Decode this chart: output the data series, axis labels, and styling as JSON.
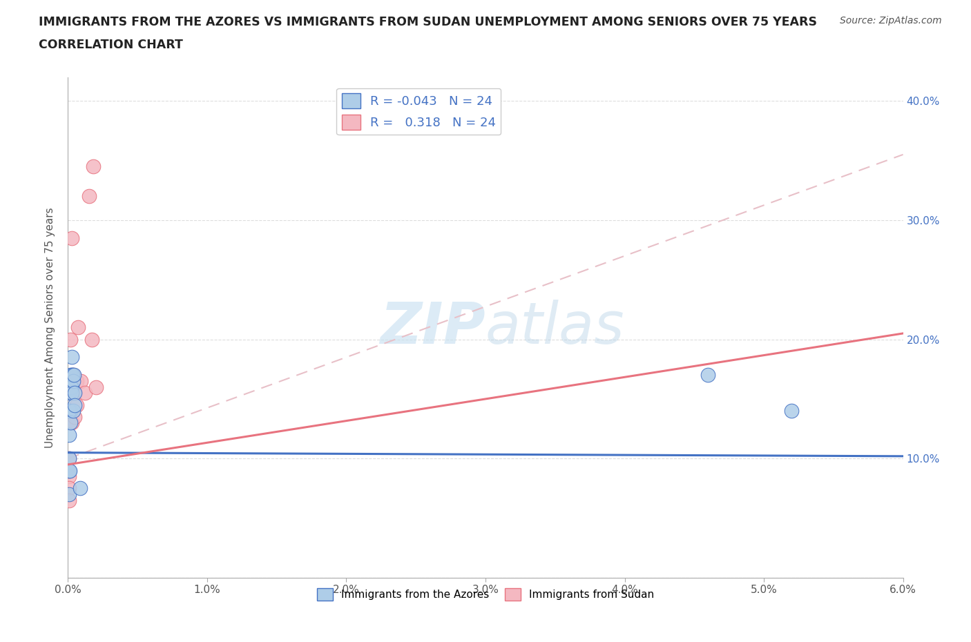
{
  "title_line1": "IMMIGRANTS FROM THE AZORES VS IMMIGRANTS FROM SUDAN UNEMPLOYMENT AMONG SENIORS OVER 75 YEARS",
  "title_line2": "CORRELATION CHART",
  "source": "Source: ZipAtlas.com",
  "watermark": "ZIPatlas",
  "ylabel_left": "Unemployment Among Seniors over 75 years",
  "xlim": [
    0.0,
    0.06
  ],
  "ylim": [
    0.0,
    0.42
  ],
  "xticks": [
    0.0,
    0.01,
    0.02,
    0.03,
    0.04,
    0.05,
    0.06
  ],
  "yticks_left": [
    0.0,
    0.1,
    0.2,
    0.3,
    0.4
  ],
  "ytick_labels_right": [
    "10.0%",
    "20.0%",
    "30.0%",
    "40.0%"
  ],
  "xtick_labels": [
    "0.0%",
    "1.0%",
    "2.0%",
    "3.0%",
    "4.0%",
    "5.0%",
    "6.0%"
  ],
  "color_azores": "#aecde8",
  "color_sudan": "#f4b8c1",
  "line_color_azores": "#4472c4",
  "line_color_sudan": "#e8737f",
  "trendline_azores_color": "#4472c4",
  "trendline_sudan_color": "#e8737f",
  "trendline_reference_color": "#e8c0c8",
  "background_color": "#ffffff",
  "azores_x": [
    0.0002,
    0.0003,
    0.0003,
    0.0001,
    0.0001,
    0.0001,
    0.0001,
    0.0001,
    0.0001,
    0.00015,
    0.0002,
    0.0002,
    0.00025,
    0.0003,
    0.0003,
    0.00035,
    0.0004,
    0.0004,
    0.00045,
    0.0005,
    0.0005,
    0.00085,
    0.046,
    0.052
  ],
  "azores_y": [
    0.14,
    0.17,
    0.16,
    0.155,
    0.14,
    0.12,
    0.1,
    0.09,
    0.07,
    0.09,
    0.17,
    0.13,
    0.16,
    0.185,
    0.155,
    0.17,
    0.165,
    0.14,
    0.17,
    0.155,
    0.145,
    0.075,
    0.17,
    0.14
  ],
  "sudan_x": [
    0.0001,
    0.0001,
    0.0001,
    0.0001,
    0.0001,
    0.00015,
    0.0002,
    0.0002,
    0.0003,
    0.0003,
    0.0003,
    0.0004,
    0.0004,
    0.0005,
    0.0005,
    0.0006,
    0.0006,
    0.0007,
    0.0009,
    0.0012,
    0.0015,
    0.0017,
    0.0018,
    0.002
  ],
  "sudan_y": [
    0.1,
    0.09,
    0.085,
    0.075,
    0.065,
    0.13,
    0.16,
    0.2,
    0.285,
    0.13,
    0.155,
    0.17,
    0.155,
    0.155,
    0.135,
    0.165,
    0.145,
    0.21,
    0.165,
    0.155,
    0.32,
    0.2,
    0.345,
    0.16
  ],
  "ref_line_x": [
    0.0,
    0.06
  ],
  "ref_line_y": [
    0.1,
    0.355
  ]
}
